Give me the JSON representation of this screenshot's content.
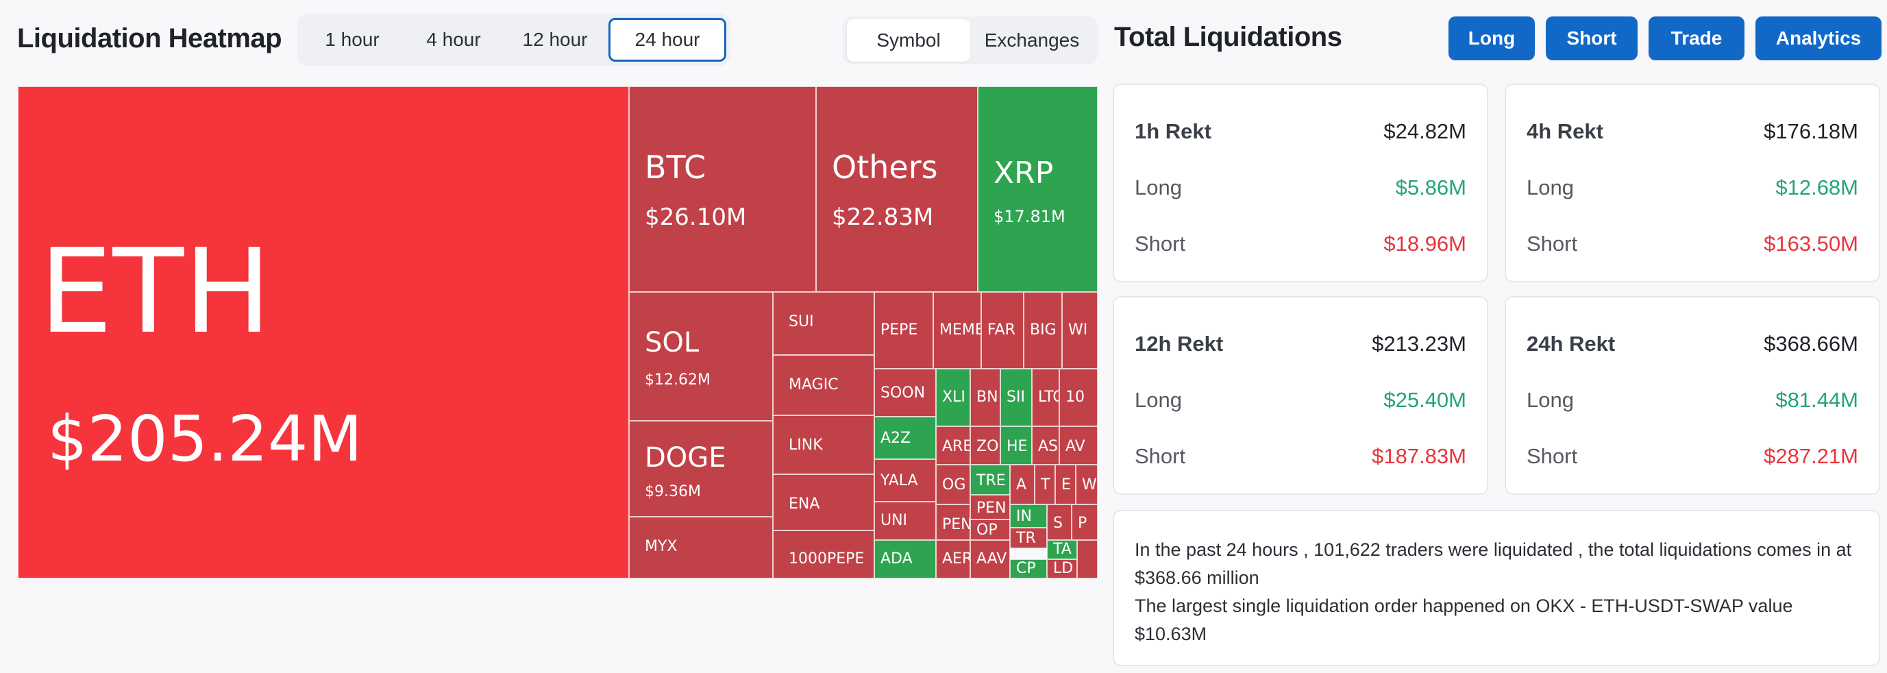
{
  "heatmap": {
    "title": "Liquidation Heatmap",
    "time_tabs": [
      "1 hour",
      "4 hour",
      "12 hour",
      "24 hour"
    ],
    "active_time_tab": "24 hour",
    "view_tabs": [
      "Symbol",
      "Exchanges"
    ],
    "active_view_tab": "Symbol",
    "colors": {
      "red": "#c14149",
      "bright_red": "#f5343c",
      "green": "#2ea350"
    },
    "tiles": [
      {
        "symbol": "ETH",
        "value": "$205.24M",
        "color": "bright_red"
      },
      {
        "symbol": "BTC",
        "value": "$26.10M",
        "color": "red"
      },
      {
        "symbol": "Others",
        "value": "$22.83M",
        "color": "red"
      },
      {
        "symbol": "XRP",
        "value": "$17.81M",
        "color": "green"
      },
      {
        "symbol": "SOL",
        "value": "$12.62M",
        "color": "red"
      },
      {
        "symbol": "DOGE",
        "value": "$9.36M",
        "color": "red"
      },
      {
        "symbol": "MYX",
        "value": "",
        "color": "red"
      },
      {
        "symbol": "SUI",
        "value": "",
        "color": "red"
      },
      {
        "symbol": "MAGIC",
        "value": "",
        "color": "red"
      },
      {
        "symbol": "LINK",
        "value": "",
        "color": "red"
      },
      {
        "symbol": "ENA",
        "value": "",
        "color": "red"
      },
      {
        "symbol": "1000PEPE",
        "value": "",
        "color": "red"
      },
      {
        "symbol": "PEPE",
        "value": "",
        "color": "red"
      },
      {
        "symbol": "MEME",
        "value": "",
        "color": "red"
      },
      {
        "symbol": "FAR",
        "value": "",
        "color": "red"
      },
      {
        "symbol": "BIG",
        "value": "",
        "color": "red"
      },
      {
        "symbol": "WI",
        "value": "",
        "color": "red"
      },
      {
        "symbol": "SOON",
        "value": "",
        "color": "red"
      },
      {
        "symbol": "XLI",
        "value": "",
        "color": "green"
      },
      {
        "symbol": "BN",
        "value": "",
        "color": "red"
      },
      {
        "symbol": "SII",
        "value": "",
        "color": "green"
      },
      {
        "symbol": "LTC",
        "value": "",
        "color": "red"
      },
      {
        "symbol": "10",
        "value": "",
        "color": "red"
      },
      {
        "symbol": "A2Z",
        "value": "",
        "color": "green"
      },
      {
        "symbol": "ARB",
        "value": "",
        "color": "red"
      },
      {
        "symbol": "ZO",
        "value": "",
        "color": "red"
      },
      {
        "symbol": "HE",
        "value": "",
        "color": "green"
      },
      {
        "symbol": "AS",
        "value": "",
        "color": "red"
      },
      {
        "symbol": "AV",
        "value": "",
        "color": "red"
      },
      {
        "symbol": "YALA",
        "value": "",
        "color": "red"
      },
      {
        "symbol": "OG",
        "value": "",
        "color": "red"
      },
      {
        "symbol": "TRE",
        "value": "",
        "color": "green"
      },
      {
        "symbol": "A",
        "value": "",
        "color": "red"
      },
      {
        "symbol": "T",
        "value": "",
        "color": "red"
      },
      {
        "symbol": "E",
        "value": "",
        "color": "red"
      },
      {
        "symbol": "W",
        "value": "",
        "color": "red"
      },
      {
        "symbol": "UNI",
        "value": "",
        "color": "red"
      },
      {
        "symbol": "PEN",
        "value": "",
        "color": "red"
      },
      {
        "symbol": "PEN",
        "value": "",
        "color": "red"
      },
      {
        "symbol": "IN",
        "value": "",
        "color": "green"
      },
      {
        "symbol": "S",
        "value": "",
        "color": "red"
      },
      {
        "symbol": "P",
        "value": "",
        "color": "red"
      },
      {
        "symbol": "OP",
        "value": "",
        "color": "red"
      },
      {
        "symbol": "TR",
        "value": "",
        "color": "red"
      },
      {
        "symbol": "ADA",
        "value": "",
        "color": "green"
      },
      {
        "symbol": "AER",
        "value": "",
        "color": "red"
      },
      {
        "symbol": "AAV",
        "value": "",
        "color": "red"
      },
      {
        "symbol": "TA",
        "value": "",
        "color": "green"
      },
      {
        "symbol": "CP",
        "value": "",
        "color": "green"
      },
      {
        "symbol": "LD",
        "value": "",
        "color": "red"
      },
      {
        "symbol": "",
        "value": "",
        "color": "red"
      }
    ]
  },
  "total": {
    "title": "Total Liquidations",
    "buttons": [
      "Long",
      "Short",
      "Trade",
      "Analytics"
    ],
    "long_label": "Long",
    "short_label": "Short",
    "cards": [
      {
        "label": "1h Rekt",
        "total": "$24.82M",
        "long": "$5.86M",
        "short": "$18.96M"
      },
      {
        "label": "4h Rekt",
        "total": "$176.18M",
        "long": "$12.68M",
        "short": "$163.50M"
      },
      {
        "label": "12h Rekt",
        "total": "$213.23M",
        "long": "$25.40M",
        "short": "$187.83M"
      },
      {
        "label": "24h Rekt",
        "total": "$368.66M",
        "long": "$81.44M",
        "short": "$287.21M"
      }
    ],
    "summary_line1": "In the past 24 hours , 101,622 traders were liquidated , the total liquidations comes in at $368.66 million",
    "summary_line2": "The largest single liquidation order happened on OKX - ETH-USDT-SWAP value $10.63M"
  }
}
